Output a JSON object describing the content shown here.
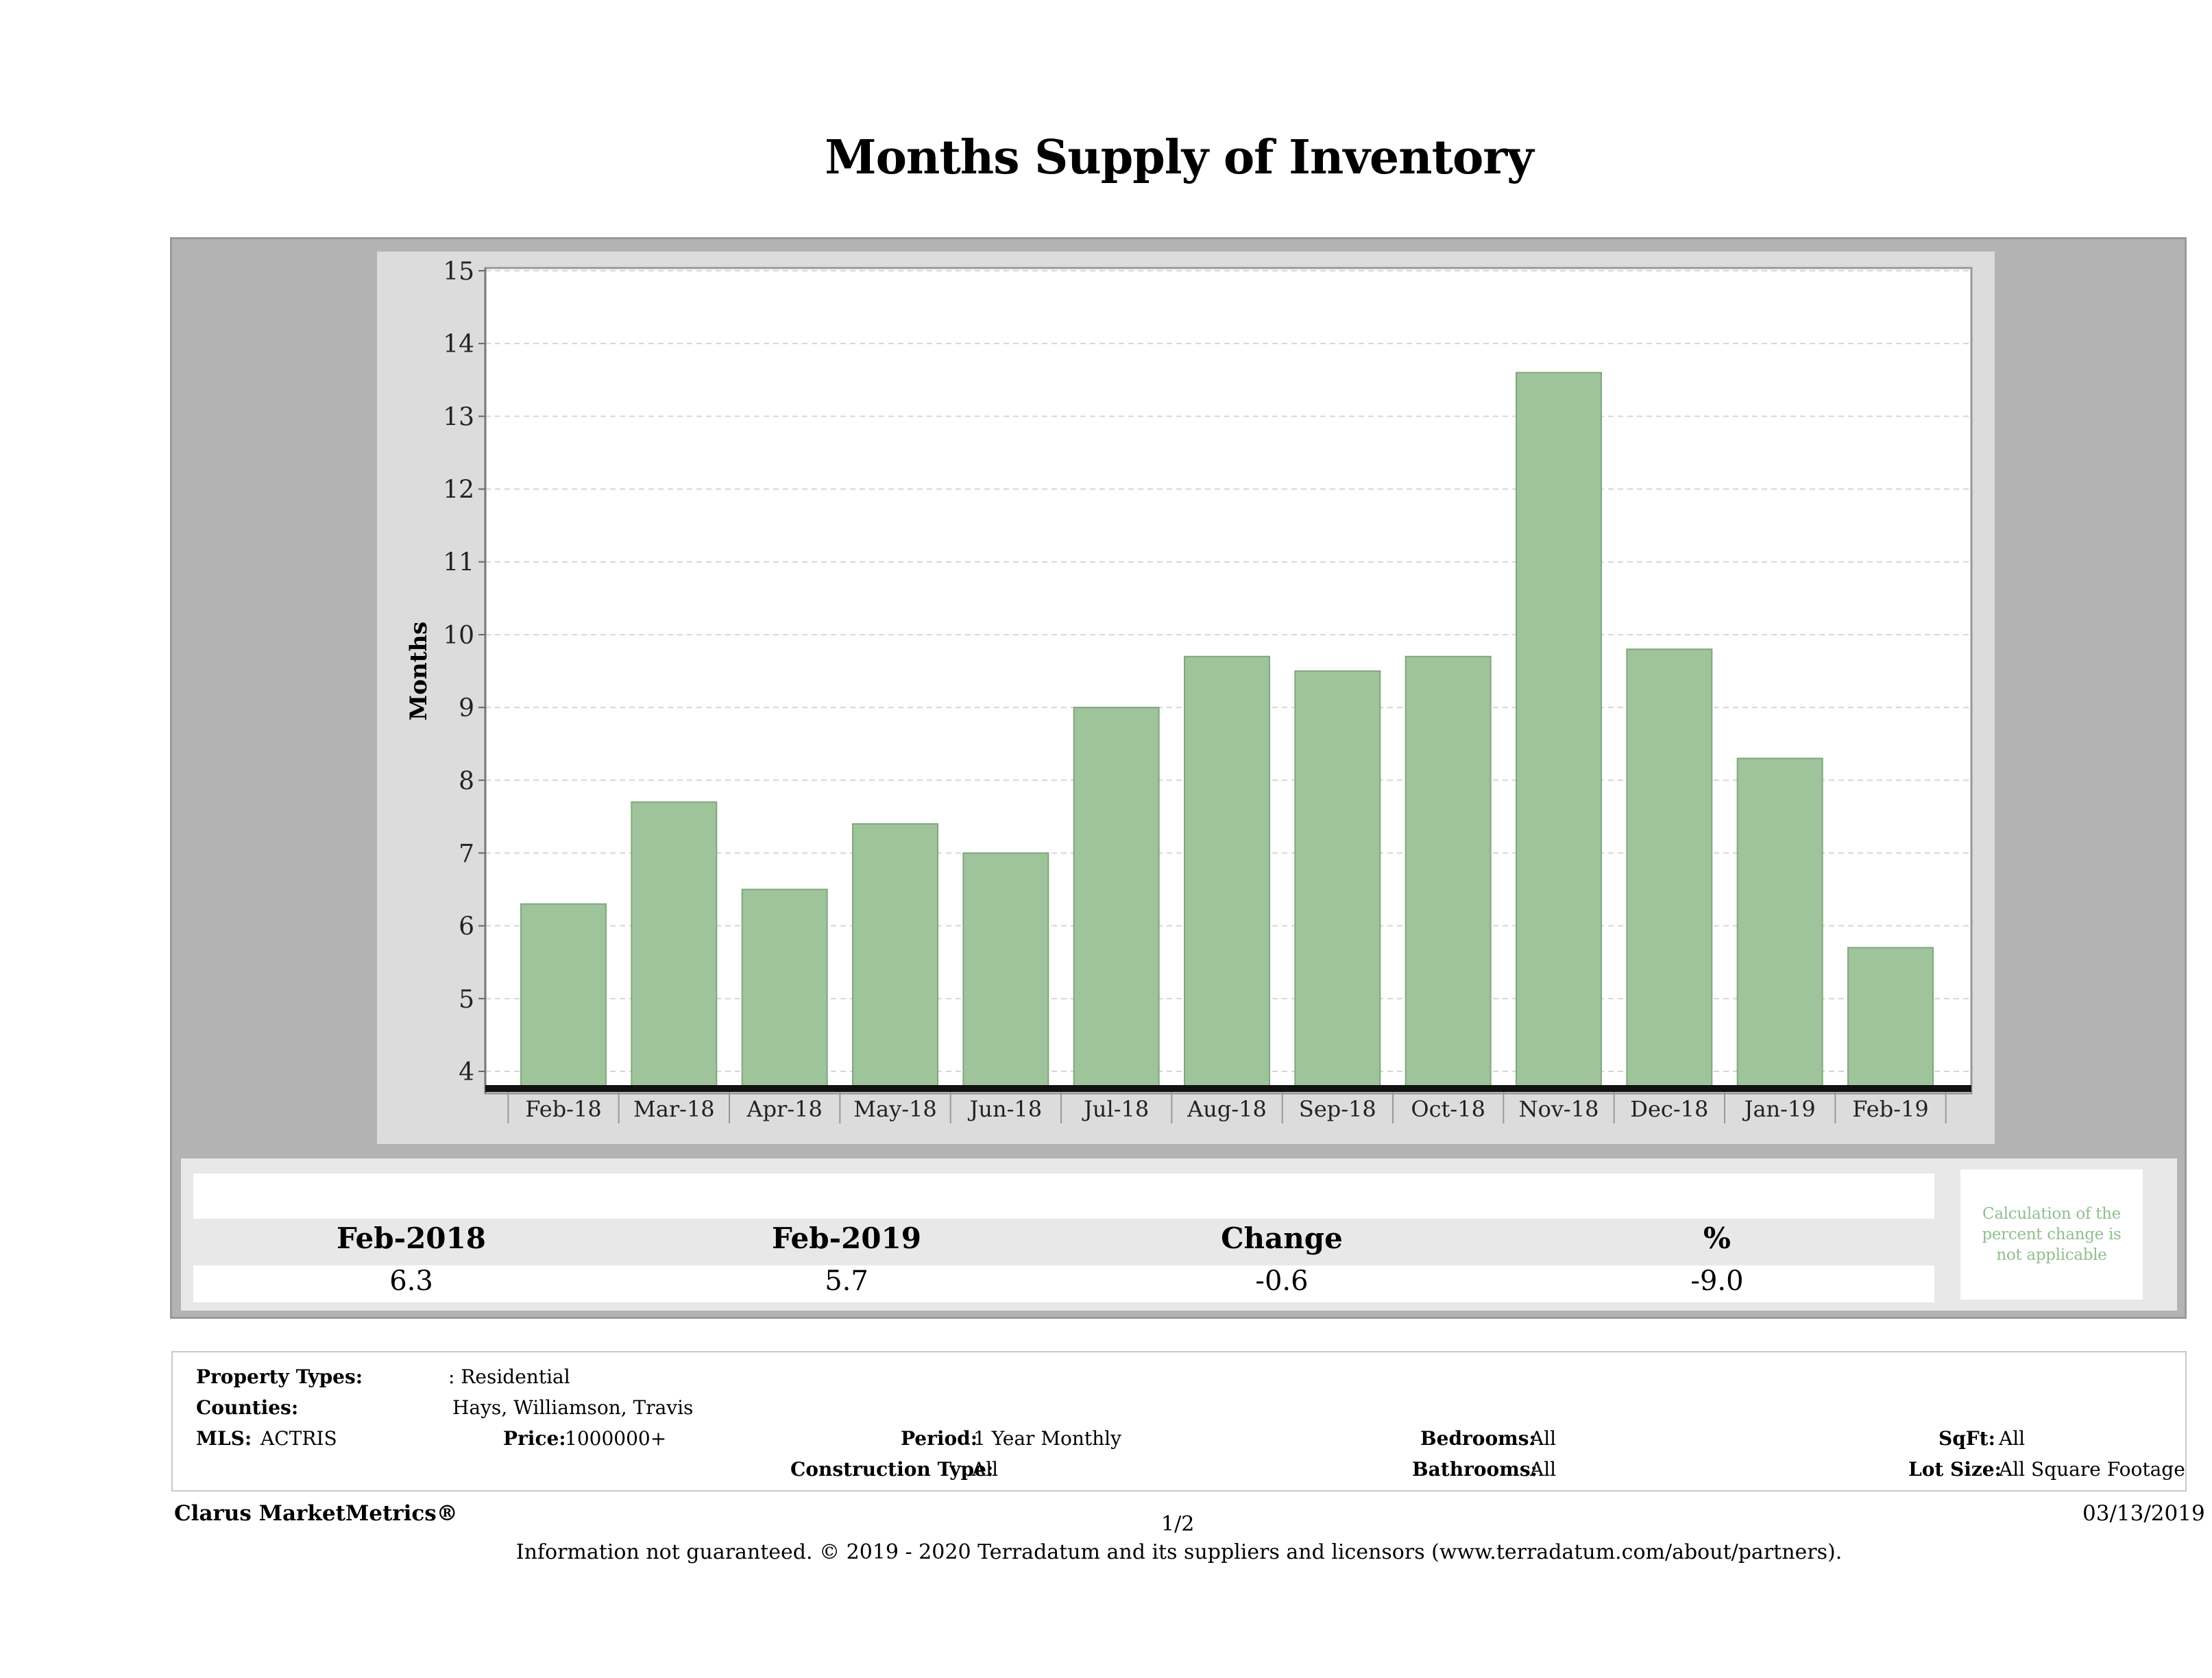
{
  "title": "Months Supply of Inventory",
  "chart_data": {
    "type": "bar",
    "title": "Months Supply of Inventory",
    "xlabel": "",
    "ylabel": "Months",
    "ylim": [
      4,
      15
    ],
    "yticks": [
      4,
      5,
      6,
      7,
      8,
      9,
      10,
      11,
      12,
      13,
      14,
      15
    ],
    "grid": true,
    "categories": [
      "Feb-18",
      "Mar-18",
      "Apr-18",
      "May-18",
      "Jun-18",
      "Jul-18",
      "Aug-18",
      "Sep-18",
      "Oct-18",
      "Nov-18",
      "Dec-18",
      "Jan-19",
      "Feb-19"
    ],
    "values": [
      6.3,
      7.7,
      6.5,
      7.4,
      7.0,
      9.0,
      9.7,
      9.5,
      9.7,
      13.6,
      9.8,
      8.3,
      5.7
    ],
    "bar_color": "#9fc39b"
  },
  "summary": {
    "headers": [
      "Feb-2018",
      "Feb-2019",
      "Change",
      "%"
    ],
    "values": [
      "6.3",
      "5.7",
      "-0.6",
      "-9.0"
    ],
    "note": "Calculation of the percent change is not applicable"
  },
  "criteria": {
    "property_types_label": "Property Types:",
    "property_types_value": ": Residential",
    "counties_label": "Counties:",
    "counties_value": "Hays, Williamson, Travis",
    "mls_label": "MLS:",
    "mls_value": "ACTRIS",
    "price_label": "Price:",
    "price_value": "1000000+",
    "period_label": "Period:",
    "period_value": "1 Year Monthly",
    "construction_label": "Construction Type:",
    "construction_value": "All",
    "bedrooms_label": "Bedrooms:",
    "bedrooms_value": "All",
    "bathrooms_label": "Bathrooms:",
    "bathrooms_value": "All",
    "sqft_label": "SqFt:",
    "sqft_value": "All",
    "lotsize_label": "Lot Size:",
    "lotsize_value": "All Square Footage"
  },
  "footer": {
    "brand": "Clarus MarketMetrics®",
    "page": "1/2",
    "date": "03/13/2019",
    "disclaimer": "Information not guaranteed. © 2019 - 2020 Terradatum and its suppliers and licensors (www.terradatum.com/about/partners)."
  }
}
